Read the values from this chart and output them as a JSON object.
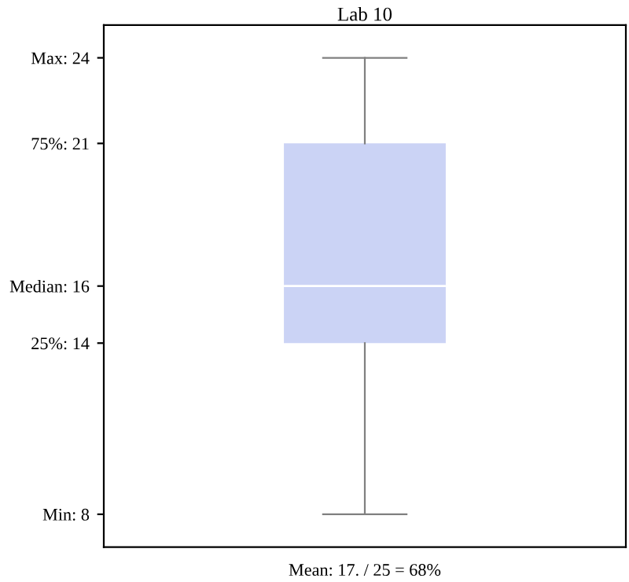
{
  "chart_data": {
    "type": "box",
    "title": "Lab 10",
    "xlabel": "Mean: 17. / 25 = 68%",
    "categories": [
      null
    ],
    "boxes": [
      {
        "low": 8,
        "q1": 14,
        "median": 16,
        "q3": 21,
        "high": 24
      }
    ],
    "color": "#cbd3f5",
    "ylim": [
      6.85,
      25.15
    ],
    "yticks": [
      {
        "value": 8,
        "label": "Min: 8"
      },
      {
        "value": 14,
        "label": "25%: 14"
      },
      {
        "value": 16,
        "label": "Median: 16"
      },
      {
        "value": 21,
        "label": "75%: 21"
      },
      {
        "value": 24,
        "label": "Max: 24"
      }
    ],
    "grid": false,
    "legend": false
  }
}
